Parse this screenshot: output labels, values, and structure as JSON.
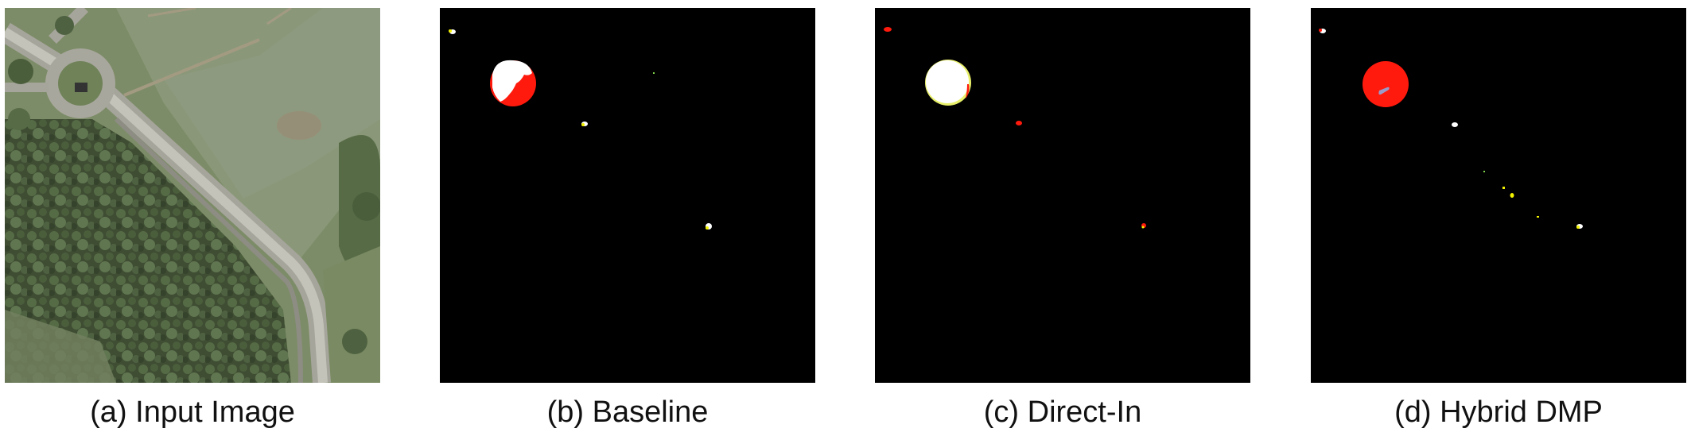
{
  "figure": {
    "panels": [
      {
        "caption": "(a) Input Image"
      },
      {
        "caption": "(b) Baseline"
      },
      {
        "caption": "(c) Direct-In"
      },
      {
        "caption": "(d) Hybrid DMP"
      }
    ]
  },
  "colors": {
    "background": "#000000",
    "white": "#ffffff",
    "red": "#ff1a0d",
    "yellow": "#f2f200",
    "lavender": "#9a9ac8"
  }
}
